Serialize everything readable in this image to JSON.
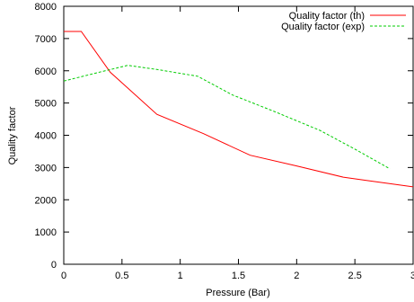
{
  "chart_data": {
    "type": "line",
    "title": "",
    "xlabel": "Pressure (Bar)",
    "ylabel": "Quality factor",
    "xlim": [
      0,
      3
    ],
    "ylim": [
      0,
      8000
    ],
    "xticks": [
      0,
      0.5,
      1,
      1.5,
      2,
      2.5,
      3
    ],
    "xtick_labels": [
      "0",
      "0.5",
      "1",
      "1.5",
      "2",
      "2.5",
      "3"
    ],
    "yticks": [
      0,
      1000,
      2000,
      3000,
      4000,
      5000,
      6000,
      7000,
      8000
    ],
    "ytick_labels": [
      "0",
      "1000",
      "2000",
      "3000",
      "4000",
      "5000",
      "6000",
      "7000",
      "8000"
    ],
    "grid": false,
    "legend_position": "top-right",
    "series": [
      {
        "name": "Quality factor (th)",
        "color": "#ff0000",
        "dash": "solid",
        "x": [
          0,
          0.15,
          0.4,
          0.8,
          1.2,
          1.6,
          2.0,
          2.4,
          2.6,
          3.0
        ],
        "y": [
          7220,
          7220,
          5950,
          4650,
          4050,
          3380,
          3050,
          2700,
          2600,
          2400
        ]
      },
      {
        "name": "Quality factor (exp)",
        "color": "#00cc00",
        "dash": "dashed",
        "x": [
          0,
          0.3,
          0.55,
          0.8,
          1.15,
          1.45,
          1.8,
          2.2,
          2.5,
          2.8
        ],
        "y": [
          5680,
          5950,
          6170,
          6040,
          5830,
          5250,
          4750,
          4150,
          3570,
          2960
        ]
      }
    ]
  }
}
